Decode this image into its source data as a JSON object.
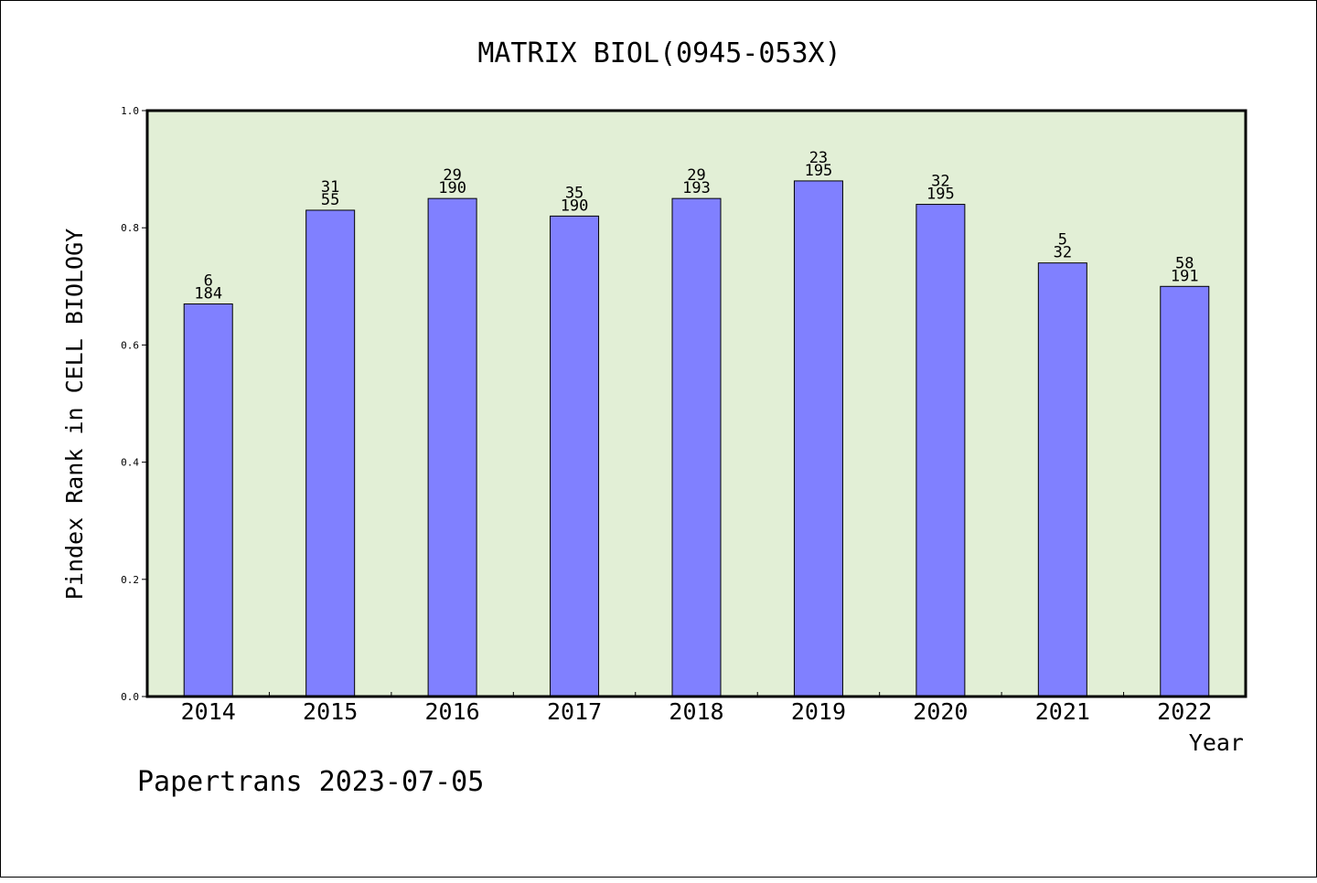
{
  "footer": {
    "text": "Papertrans 2023-07-05"
  },
  "colors": {
    "plot_bg": "#e2efd6",
    "bar_fill": "#8080ff",
    "bar_stroke": "#000000",
    "border": "#000000"
  },
  "chart_data": {
    "type": "bar",
    "title": "MATRIX BIOL(0945-053X)",
    "xlabel": "Year",
    "ylabel": "Pindex Rank in CELL BIOLOGY",
    "ylim": [
      0,
      1.0
    ],
    "yticks": [
      "0.0",
      "0.2",
      "0.4",
      "0.6",
      "0.8",
      "1.0"
    ],
    "grid": false,
    "categories": [
      "2014",
      "2015",
      "2016",
      "2017",
      "2018",
      "2019",
      "2020",
      "2021",
      "2022"
    ],
    "values": [
      0.67,
      0.83,
      0.85,
      0.82,
      0.85,
      0.88,
      0.84,
      0.74,
      0.7
    ],
    "label_top": [
      "6",
      "31",
      "29",
      "35",
      "29",
      "23",
      "32",
      "5",
      "58"
    ],
    "label_bottom": [
      "184",
      "55",
      "190",
      "190",
      "193",
      "195",
      "195",
      "32",
      "191"
    ]
  }
}
